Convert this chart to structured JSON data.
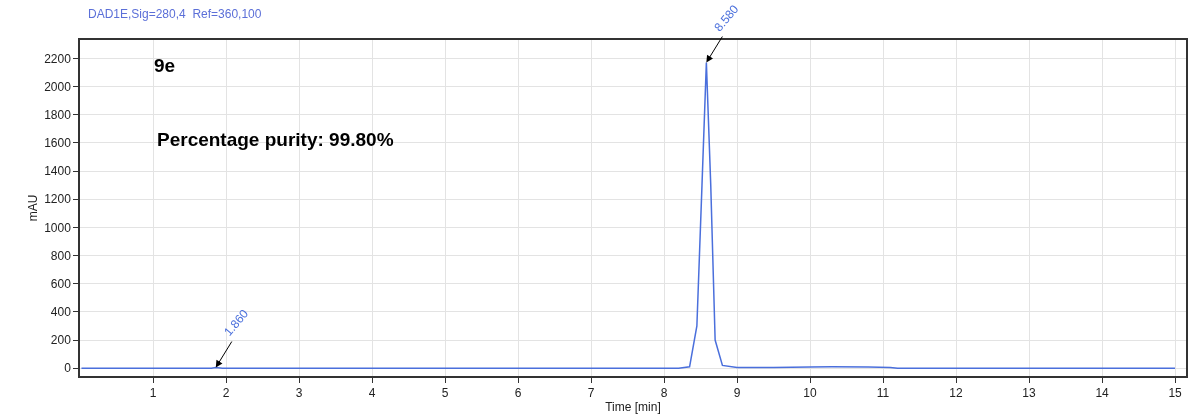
{
  "chart_data": {
    "type": "line",
    "title": "DAD1E,Sig=280,4  Ref=360,100",
    "xlabel": "Time [min]",
    "ylabel": "mAU",
    "x": [
      0.02,
      1.8,
      1.86,
      1.95,
      8.2,
      8.35,
      8.45,
      8.52,
      8.58,
      8.64,
      8.7,
      8.8,
      9.0,
      9.5,
      10.0,
      10.3,
      10.8,
      11.1,
      11.2,
      15.0
    ],
    "series": [
      {
        "color": "#4a6fdc",
        "values": [
          0,
          0,
          5,
          0,
          0,
          10,
          300,
          1300,
          2170,
          1300,
          200,
          20,
          5,
          5,
          8,
          10,
          8,
          6,
          0,
          0
        ]
      }
    ],
    "xlim": [
      0,
      15.15
    ],
    "ylim": [
      -55,
      2330
    ],
    "xticks": [
      1,
      2,
      3,
      4,
      5,
      6,
      7,
      8,
      9,
      10,
      11,
      12,
      13,
      14,
      15
    ],
    "yticks": [
      0,
      200,
      400,
      600,
      800,
      1000,
      1200,
      1400,
      1600,
      1800,
      2000,
      2200
    ],
    "grid": true,
    "marker": "none",
    "line_style": "solid",
    "annotations": [
      "9e",
      "Percentage purity: 99.80%",
      {
        "text": "1.860",
        "x": 1.86,
        "y": 5
      },
      {
        "text": "8.580",
        "x": 8.58,
        "y": 2170
      }
    ]
  }
}
